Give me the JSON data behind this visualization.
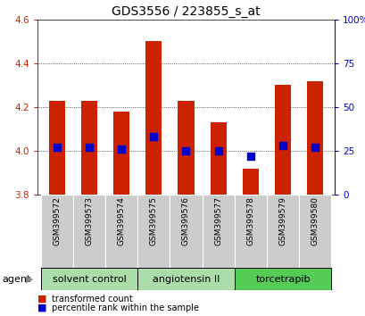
{
  "title": "GDS3556 / 223855_s_at",
  "samples": [
    "GSM399572",
    "GSM399573",
    "GSM399574",
    "GSM399575",
    "GSM399576",
    "GSM399577",
    "GSM399578",
    "GSM399579",
    "GSM399580"
  ],
  "transformed_counts": [
    4.23,
    4.23,
    4.18,
    4.5,
    4.23,
    4.13,
    3.92,
    4.3,
    4.32
  ],
  "percentile_ranks": [
    27,
    27,
    26,
    33,
    25,
    25,
    22,
    28,
    27
  ],
  "baseline": 3.8,
  "ylim_left": [
    3.8,
    4.6
  ],
  "ylim_right": [
    0,
    100
  ],
  "yticks_left": [
    3.8,
    4.0,
    4.2,
    4.4,
    4.6
  ],
  "yticks_right": [
    0,
    25,
    50,
    75,
    100
  ],
  "ytick_labels_right": [
    "0",
    "25",
    "50",
    "75",
    "100%"
  ],
  "bar_color": "#cc2200",
  "dot_color": "#0000cc",
  "background_color": "#ffffff",
  "plot_bg_color": "#ffffff",
  "grid_color": "#000000",
  "agent_groups": [
    {
      "label": "solvent control",
      "samples": [
        0,
        1,
        2
      ],
      "color": "#aaddaa"
    },
    {
      "label": "angiotensin II",
      "samples": [
        3,
        4,
        5
      ],
      "color": "#aaddaa"
    },
    {
      "label": "torcetrapib",
      "samples": [
        6,
        7,
        8
      ],
      "color": "#55cc55"
    }
  ],
  "legend_items": [
    {
      "label": "transformed count",
      "color": "#cc2200"
    },
    {
      "label": "percentile rank within the sample",
      "color": "#0000cc"
    }
  ],
  "bar_width": 0.5,
  "title_fontsize": 10,
  "tick_fontsize": 7.5,
  "sample_fontsize": 6.5,
  "agent_fontsize": 8,
  "legend_fontsize": 7
}
